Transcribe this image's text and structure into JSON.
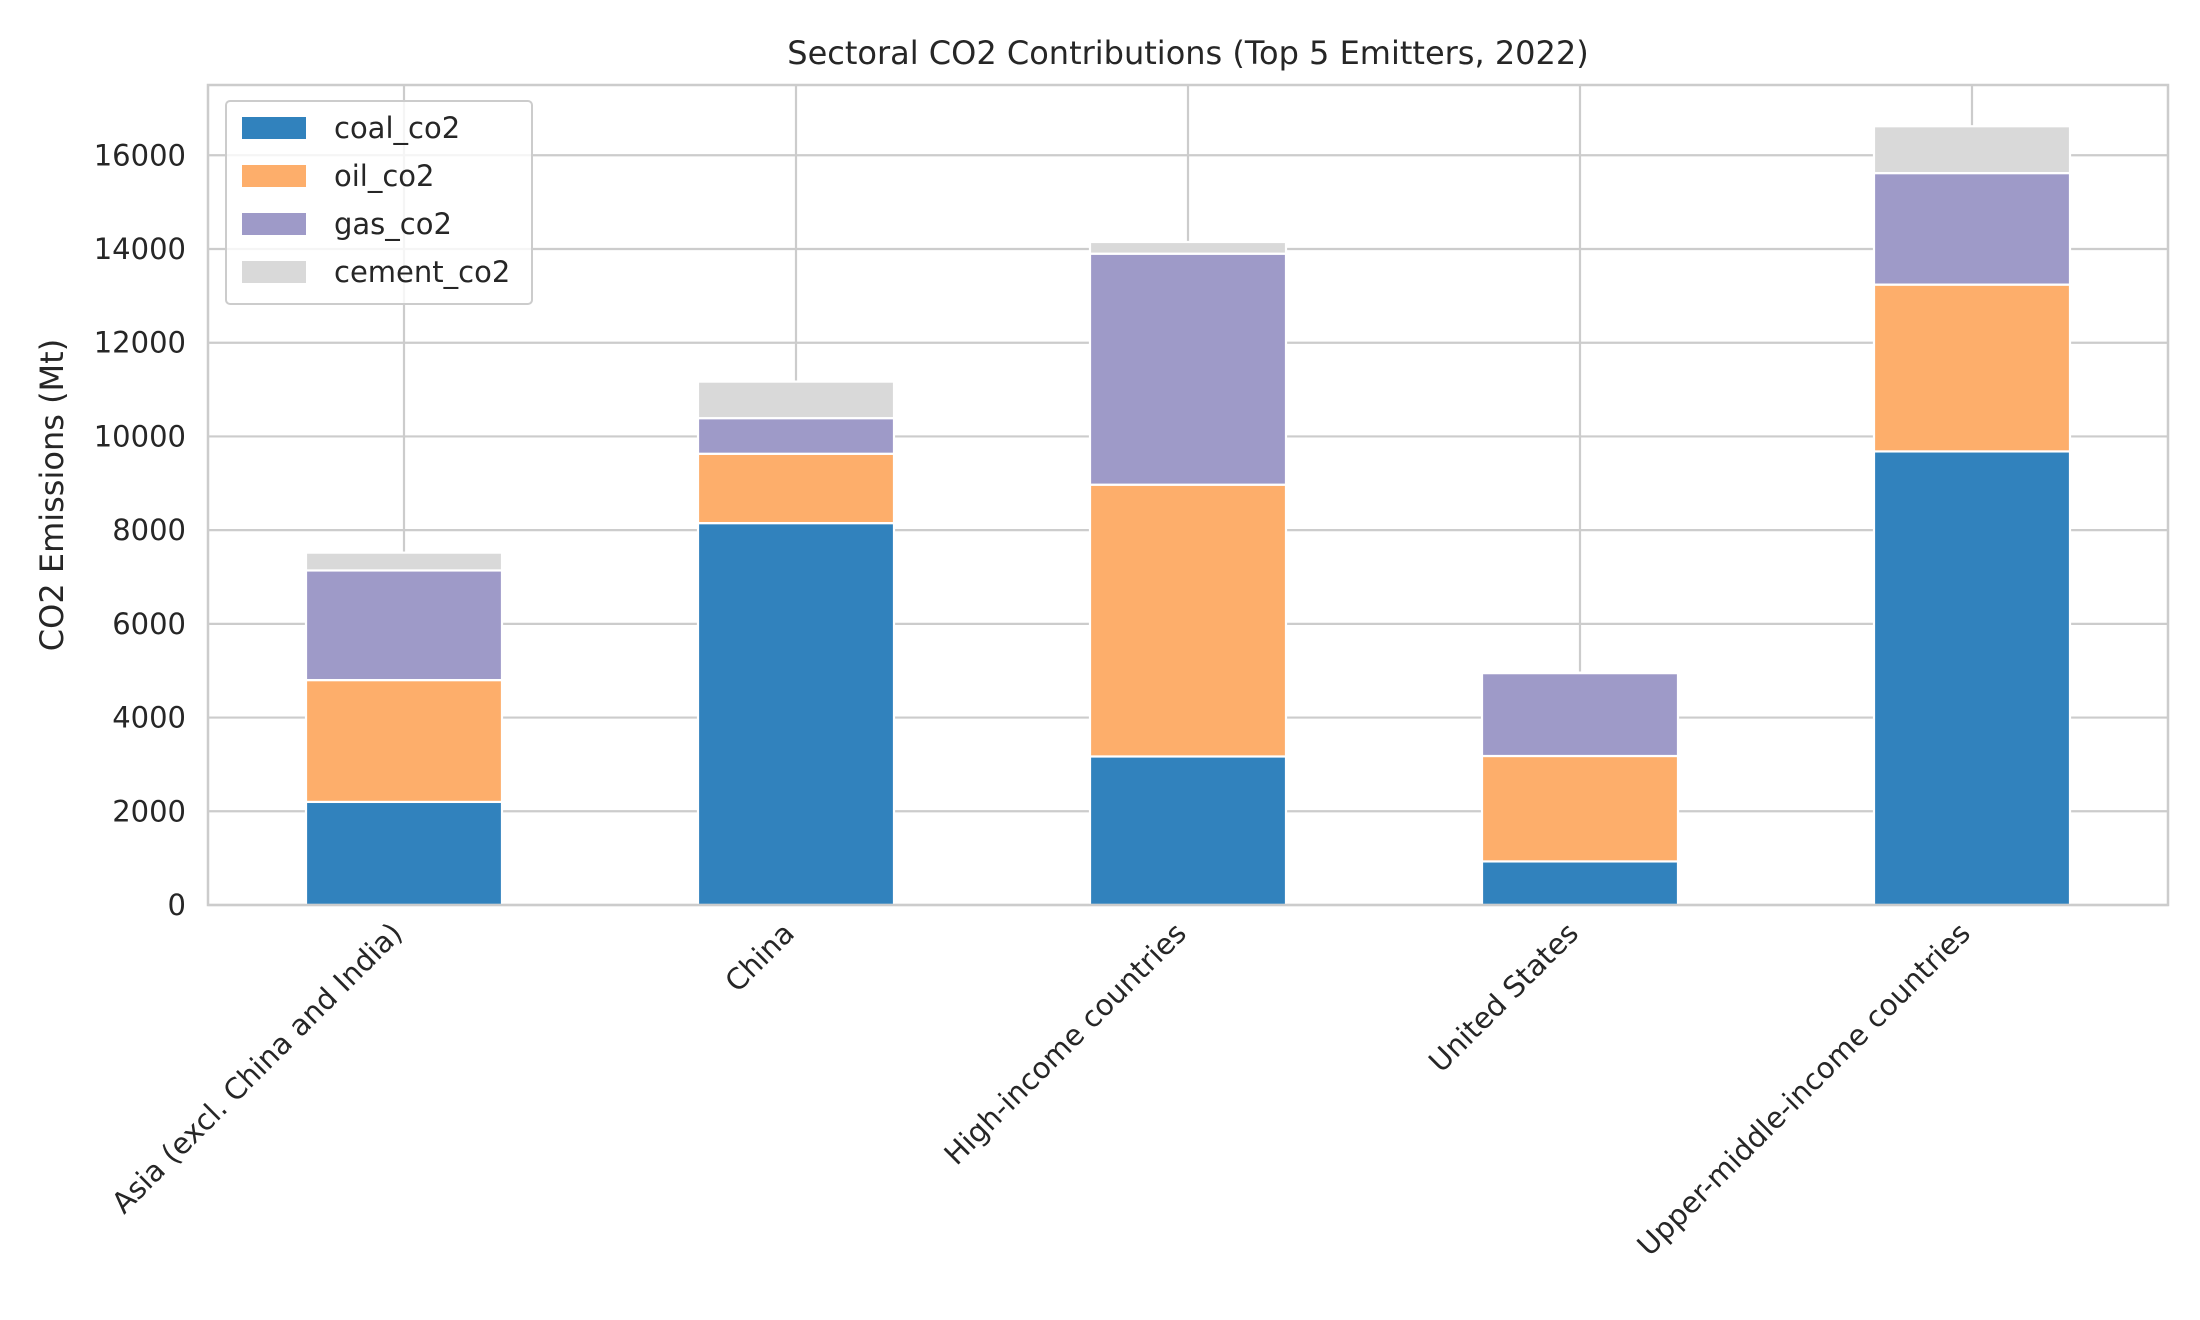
{
  "chart_data": {
    "type": "bar",
    "stacked": true,
    "title": "Sectoral CO2 Contributions (Top 5 Emitters, 2022)",
    "xlabel": "",
    "ylabel": "CO2 Emissions (Mt)",
    "ylim": [
      0,
      17500
    ],
    "yticks": [
      0,
      2000,
      4000,
      6000,
      8000,
      10000,
      12000,
      14000,
      16000
    ],
    "grid": true,
    "legend_position": "top-left",
    "categories": [
      "Asia (excl. China and India)",
      "China",
      "High-income countries",
      "United States",
      "Upper-middle-income countries"
    ],
    "series": [
      {
        "name": "coal_co2",
        "color": "#3182bd",
        "values": [
          2200,
          8150,
          3170,
          930,
          9680
        ]
      },
      {
        "name": "oil_co2",
        "color": "#fdae6b",
        "values": [
          2600,
          1480,
          5800,
          2250,
          3560
        ]
      },
      {
        "name": "gas_co2",
        "color": "#9e9ac8",
        "values": [
          2340,
          760,
          4930,
          1770,
          2380
        ]
      },
      {
        "name": "cement_co2",
        "color": "#d9d9d9",
        "values": [
          380,
          780,
          250,
          10,
          1000
        ]
      }
    ]
  }
}
